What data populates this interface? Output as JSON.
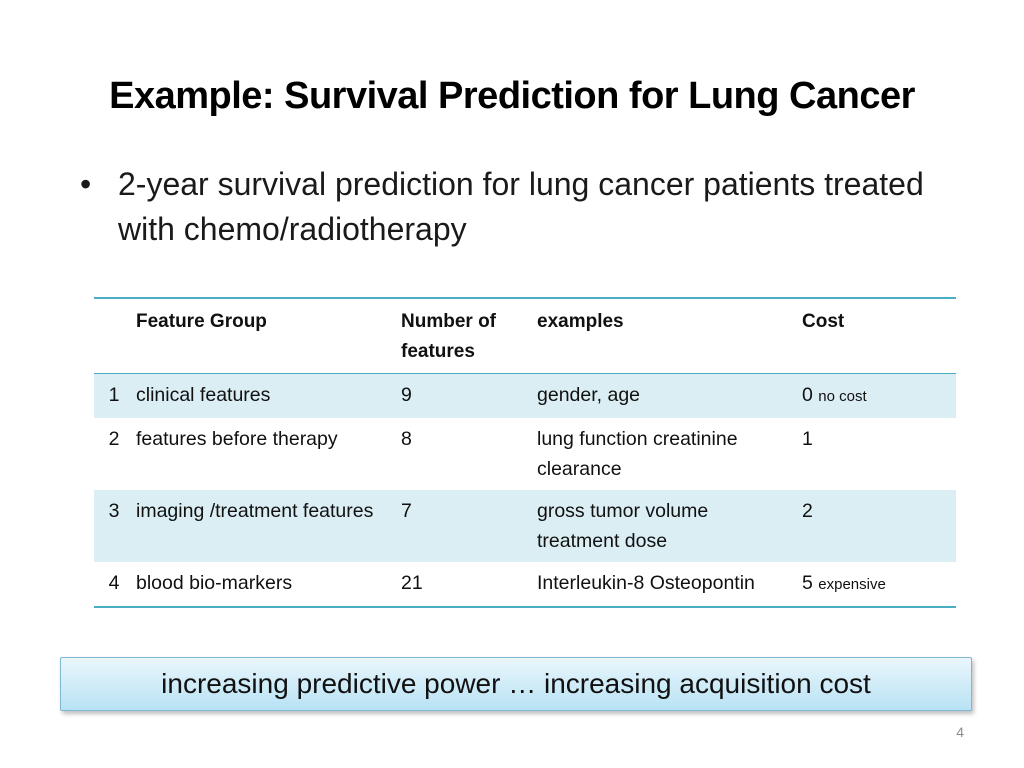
{
  "slide": {
    "title": "Example: Survival Prediction for Lung Cancer",
    "bullet_char": "•",
    "bullet_text": "2-year survival prediction for lung cancer  patients treated with chemo/radiotherapy",
    "banner_text": "increasing predictive power …  increasing acquisition cost",
    "page_number": "4"
  },
  "table": {
    "headers": {
      "num": "",
      "group": "Feature Group",
      "count": "Number of features",
      "examples": "examples",
      "cost": "Cost"
    },
    "rows": [
      {
        "num": "1",
        "group": "clinical features",
        "count": "9",
        "examples": "gender, age",
        "cost": "0",
        "cost_note": "no cost"
      },
      {
        "num": "2",
        "group": "features before therapy",
        "count": "8",
        "examples": "lung function creatinine clearance",
        "cost": "1",
        "cost_note": ""
      },
      {
        "num": "3",
        "group": "imaging /treatment features",
        "count": "7",
        "examples": "gross tumor volume treatment dose",
        "cost": "2",
        "cost_note": ""
      },
      {
        "num": "4",
        "group": "blood bio-markers",
        "count": "21",
        "examples": "Interleukin-8 Osteopontin",
        "cost": "5",
        "cost_note": "expensive"
      }
    ]
  },
  "colors": {
    "table_rule": "#4bacc6",
    "row_shade": "#dbeef4",
    "banner_fill": "#b8e2f4"
  }
}
